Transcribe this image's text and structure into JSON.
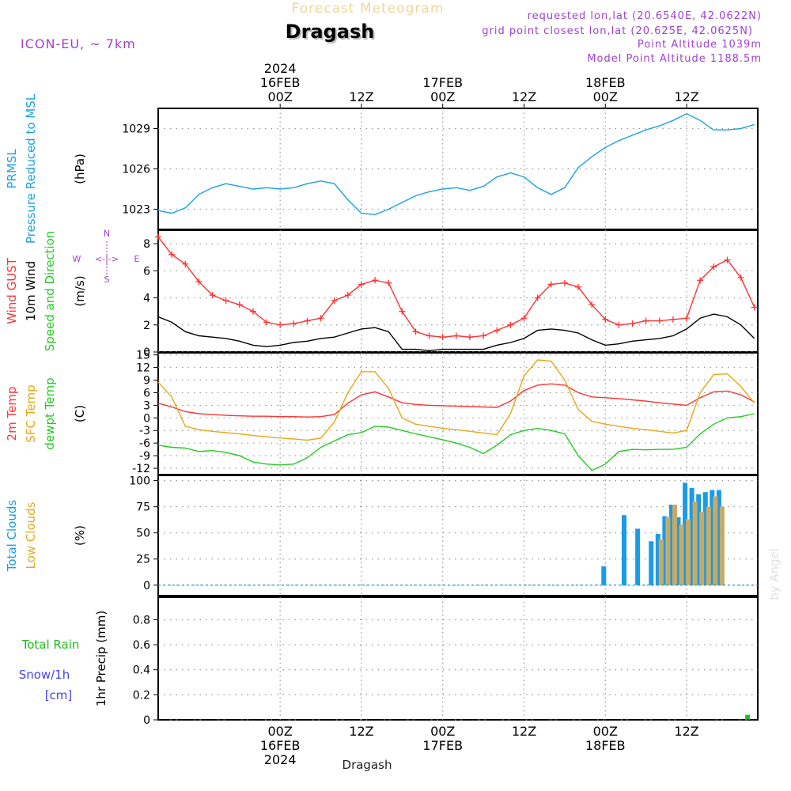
{
  "header": {
    "title": "Dragash",
    "subtitle": "Forecast Meteogram",
    "model": "ICON-EU, ~ 7km",
    "requested": "requested lon,lat (20.6540E, 42.0622N)",
    "grid_point": "grid point closest lon,lat (20.625E, 42.0625N)",
    "point_altitude": "Point Altitude 1039m",
    "model_altitude": "Model Point Altitude 1188.5m",
    "footer_name": "Dragash",
    "watermark": "by Angel"
  },
  "colors": {
    "pressure": "#1ba1e2",
    "gust": "#ff3333",
    "wind": "#000000",
    "temp": "#ff3333",
    "sfc_temp": "#e6a817",
    "dewpoint": "#22cc22",
    "total_clouds": "#1b9be6",
    "low_clouds": "#c8aa64",
    "rain": "#22bb22",
    "snow": "#4444ee",
    "annot": "#a040d0"
  },
  "chart_data": [
    {
      "type": "line",
      "name": "pressure",
      "title": "PRMSL Pressure Reduced to MSL",
      "ylabel": "(hPa)",
      "ylim": [
        1021.5,
        1030.5
      ],
      "yticks": [
        1023,
        1026,
        1029
      ],
      "labels": [
        "PRMSL",
        "Pressure Reduced to MSL"
      ],
      "series": [
        {
          "name": "PRMSL",
          "x": [
            -18,
            -16,
            -14,
            -12,
            -10,
            -8,
            -6,
            -4,
            -2,
            0,
            2,
            4,
            6,
            8,
            10,
            12,
            14,
            16,
            18,
            20,
            22,
            24,
            26,
            28,
            30,
            32,
            34,
            36,
            38,
            40,
            42,
            44,
            46,
            48,
            50,
            52,
            54,
            56,
            58,
            60,
            62,
            64,
            66,
            68,
            70
          ],
          "values": [
            1022.9,
            1022.7,
            1023.1,
            1024.1,
            1024.6,
            1024.9,
            1024.7,
            1024.5,
            1024.6,
            1024.5,
            1024.6,
            1024.9,
            1025.1,
            1024.9,
            1023.7,
            1022.7,
            1022.6,
            1023.0,
            1023.5,
            1024.0,
            1024.3,
            1024.5,
            1024.6,
            1024.4,
            1024.7,
            1025.4,
            1025.7,
            1025.4,
            1024.6,
            1024.1,
            1024.6,
            1026.1,
            1026.9,
            1027.6,
            1028.1,
            1028.5,
            1028.9,
            1029.2,
            1029.6,
            1030.1,
            1029.6,
            1028.9,
            1028.9,
            1029.0,
            1029.3
          ]
        }
      ]
    },
    {
      "type": "line",
      "name": "wind",
      "title": "Wind GUST 10m Wind Speed and Direction",
      "ylabel": "(m/s)",
      "ylim": [
        0,
        9
      ],
      "yticks": [
        0,
        2,
        4,
        6,
        8
      ],
      "labels": [
        "Wind GUST",
        "10m Wind",
        "Speed and Direction"
      ],
      "compass": {
        "n": "N",
        "s": "S",
        "w": "W",
        "e": "E",
        "arrow": "<-|->"
      },
      "series": [
        {
          "name": "Wind GUST",
          "x": [
            -18,
            -16,
            -14,
            -12,
            -10,
            -8,
            -6,
            -4,
            -2,
            0,
            2,
            4,
            6,
            8,
            10,
            12,
            14,
            16,
            18,
            20,
            22,
            24,
            26,
            28,
            30,
            32,
            34,
            36,
            38,
            40,
            42,
            44,
            46,
            48,
            50,
            52,
            54,
            56,
            58,
            60,
            62,
            64,
            66,
            68,
            70
          ],
          "values": [
            8.5,
            7.2,
            6.5,
            5.2,
            4.2,
            3.8,
            3.5,
            3.0,
            2.2,
            2.0,
            2.1,
            2.3,
            2.5,
            3.8,
            4.2,
            5.0,
            5.3,
            5.1,
            3.0,
            1.5,
            1.2,
            1.1,
            1.2,
            1.1,
            1.2,
            1.6,
            2.0,
            2.5,
            4.0,
            5.0,
            5.1,
            4.8,
            3.5,
            2.4,
            2.0,
            2.1,
            2.3,
            2.3,
            2.4,
            2.5,
            5.3,
            6.3,
            6.8,
            5.5,
            3.3
          ]
        },
        {
          "name": "10m Wind",
          "x": [
            -18,
            -16,
            -14,
            -12,
            -10,
            -8,
            -6,
            -4,
            -2,
            0,
            2,
            4,
            6,
            8,
            10,
            12,
            14,
            16,
            18,
            20,
            22,
            24,
            26,
            28,
            30,
            32,
            34,
            36,
            38,
            40,
            42,
            44,
            46,
            48,
            50,
            52,
            54,
            56,
            58,
            60,
            62,
            64,
            66,
            68,
            70
          ],
          "values": [
            2.6,
            2.2,
            1.5,
            1.2,
            1.1,
            1.0,
            0.8,
            0.5,
            0.4,
            0.5,
            0.7,
            0.8,
            1.0,
            1.1,
            1.4,
            1.7,
            1.8,
            1.5,
            0.2,
            0.2,
            0.1,
            0.2,
            0.2,
            0.2,
            0.2,
            0.5,
            0.7,
            1.0,
            1.6,
            1.7,
            1.6,
            1.4,
            0.9,
            0.5,
            0.6,
            0.8,
            0.9,
            1.0,
            1.2,
            1.7,
            2.5,
            2.8,
            2.6,
            2.0,
            1.0
          ]
        }
      ]
    },
    {
      "type": "line",
      "name": "temperature",
      "title": "2m Temp SFC Temp dewpt Temp",
      "ylabel": "(C)",
      "ylim": [
        -13.5,
        15.5
      ],
      "yticks": [
        -12,
        -9,
        -6,
        -3,
        0,
        3,
        6,
        9,
        12,
        15
      ],
      "labels": [
        "2m Temp",
        "SFC Temp",
        "dewpt Temp"
      ],
      "series": [
        {
          "name": "2m Temp",
          "x": [
            -18,
            -16,
            -14,
            -12,
            -10,
            -8,
            -6,
            -4,
            -2,
            0,
            2,
            4,
            6,
            8,
            10,
            12,
            14,
            16,
            18,
            20,
            22,
            24,
            26,
            28,
            30,
            32,
            34,
            36,
            38,
            40,
            42,
            44,
            46,
            48,
            50,
            52,
            54,
            56,
            58,
            60,
            62,
            64,
            66,
            68,
            70
          ],
          "values": [
            3.5,
            2.6,
            1.5,
            1.0,
            0.8,
            0.6,
            0.5,
            0.4,
            0.4,
            0.3,
            0.3,
            0.2,
            0.3,
            0.8,
            3.5,
            5.5,
            6.2,
            5.0,
            3.6,
            3.2,
            3.0,
            2.9,
            2.8,
            2.7,
            2.6,
            2.5,
            4.0,
            6.5,
            7.8,
            8.1,
            7.8,
            6.0,
            5.0,
            4.8,
            4.6,
            4.3,
            4.0,
            3.6,
            3.3,
            3.0,
            4.8,
            6.2,
            6.4,
            5.5,
            3.8
          ]
        },
        {
          "name": "SFC Temp",
          "x": [
            -18,
            -16,
            -14,
            -12,
            -10,
            -8,
            -6,
            -4,
            -2,
            0,
            2,
            4,
            6,
            8,
            10,
            12,
            14,
            16,
            18,
            20,
            22,
            24,
            26,
            28,
            30,
            32,
            34,
            36,
            38,
            40,
            42,
            44,
            46,
            48,
            50,
            52,
            54,
            56,
            58,
            60,
            62,
            64,
            66,
            68,
            70
          ],
          "values": [
            8.5,
            5.0,
            -2.0,
            -2.8,
            -3.2,
            -3.5,
            -3.8,
            -4.2,
            -4.5,
            -4.8,
            -5.0,
            -5.3,
            -4.8,
            -1.0,
            6.0,
            11.0,
            11.0,
            7.0,
            0.0,
            -1.5,
            -2.0,
            -2.5,
            -2.8,
            -3.2,
            -3.6,
            -4.0,
            1.0,
            10.0,
            13.8,
            13.5,
            9.0,
            2.0,
            -0.8,
            -1.5,
            -2.0,
            -2.5,
            -2.8,
            -3.2,
            -3.6,
            -3.0,
            6.0,
            10.3,
            10.5,
            7.5,
            3.5
          ]
        },
        {
          "name": "dewpt Temp",
          "x": [
            -18,
            -16,
            -14,
            -12,
            -10,
            -8,
            -6,
            -4,
            -2,
            0,
            2,
            4,
            6,
            8,
            10,
            12,
            14,
            16,
            18,
            20,
            22,
            24,
            26,
            28,
            30,
            32,
            34,
            36,
            38,
            40,
            42,
            44,
            46,
            48,
            50,
            52,
            54,
            56,
            58,
            60,
            62,
            64,
            66,
            68,
            70
          ],
          "values": [
            -6.5,
            -7.0,
            -7.2,
            -8.0,
            -7.8,
            -8.2,
            -9.0,
            -10.5,
            -11.0,
            -11.2,
            -11.0,
            -9.5,
            -7.0,
            -5.5,
            -4.0,
            -3.5,
            -2.0,
            -2.2,
            -3.0,
            -3.8,
            -4.5,
            -5.2,
            -6.0,
            -7.0,
            -8.5,
            -6.5,
            -4.0,
            -3.0,
            -2.5,
            -3.0,
            -3.8,
            -9.0,
            -12.5,
            -11.0,
            -8.0,
            -7.5,
            -7.6,
            -7.5,
            -7.5,
            -7.0,
            -3.8,
            -1.5,
            0.0,
            0.3,
            1.0
          ]
        }
      ]
    },
    {
      "type": "bar",
      "name": "clouds",
      "title": "Total Clouds Low Clouds",
      "ylabel": "(%)",
      "ylim": [
        -10,
        105
      ],
      "yticks": [
        0,
        25,
        50,
        75,
        100
      ],
      "labels": [
        "Total Clouds",
        "Low Clouds"
      ],
      "x": [
        48,
        51,
        53,
        55,
        56,
        57,
        58,
        59,
        60,
        61,
        62,
        63,
        64,
        65,
        66,
        67,
        68,
        69,
        70
      ],
      "series": [
        {
          "name": "Total Clouds",
          "values": [
            18,
            67,
            54,
            42,
            49,
            66,
            77,
            65,
            98,
            93,
            87,
            89,
            91,
            91,
            0,
            0,
            0,
            0,
            0
          ]
        },
        {
          "name": "Low Clouds",
          "values": [
            0,
            0,
            0,
            0,
            44,
            65,
            77,
            58,
            63,
            80,
            70,
            75,
            85,
            75,
            0,
            0,
            0,
            0,
            0
          ]
        }
      ]
    },
    {
      "type": "bar",
      "name": "precip",
      "title": "1hr Precip",
      "ylabel": "1hr Precip (mm)",
      "ylim": [
        0,
        0.98
      ],
      "yticks": [
        0,
        0.2,
        0.4,
        0.6,
        0.8
      ],
      "labels": [
        "Total  Rain",
        "Snow/1h",
        "[cm]"
      ],
      "x": [
        69
      ],
      "series": [
        {
          "name": "Total Rain",
          "values": [
            0.04
          ]
        }
      ]
    }
  ],
  "time_axis": {
    "range_hours": [
      -18,
      70.5
    ],
    "top_ticks": [
      {
        "hour": 0,
        "lines": [
          "2024",
          "16FEB",
          "00Z"
        ]
      },
      {
        "hour": 12,
        "lines": [
          "12Z"
        ]
      },
      {
        "hour": 24,
        "lines": [
          "17FEB",
          "00Z"
        ]
      },
      {
        "hour": 36,
        "lines": [
          "12Z"
        ]
      },
      {
        "hour": 48,
        "lines": [
          "18FEB",
          "00Z"
        ]
      },
      {
        "hour": 60,
        "lines": [
          "12Z"
        ]
      }
    ],
    "bottom_ticks": [
      {
        "hour": 0,
        "lines": [
          "00Z",
          "16FEB",
          "2024"
        ]
      },
      {
        "hour": 12,
        "lines": [
          "12Z"
        ]
      },
      {
        "hour": 24,
        "lines": [
          "00Z",
          "17FEB"
        ]
      },
      {
        "hour": 36,
        "lines": [
          "12Z"
        ]
      },
      {
        "hour": 48,
        "lines": [
          "00Z",
          "18FEB"
        ]
      },
      {
        "hour": 60,
        "lines": [
          "12Z"
        ]
      }
    ]
  }
}
